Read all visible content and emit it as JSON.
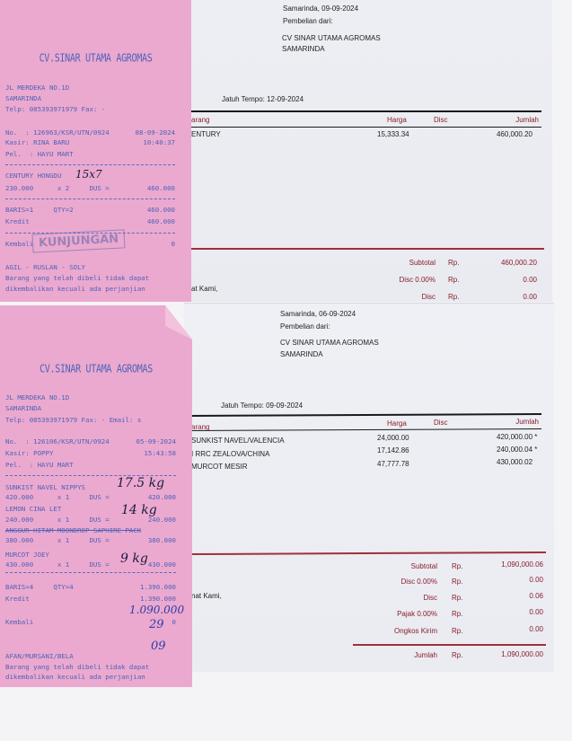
{
  "invoice_top": {
    "date": "Samarinda, 09-09-2024",
    "from_label": "Pembelian dari:",
    "supplier_name": "CV SINAR UTAMA AGROMAS",
    "supplier_city": "SAMARINDA",
    "due_date": "Jatuh Tempo: 12-09-2024",
    "columns": {
      "item": "arang",
      "price": "Harga",
      "disc": "Disc",
      "amount": "Jumlah"
    },
    "rows": [
      {
        "item": "ENTURY",
        "price": "15,333.34",
        "amount": "460,000.20"
      }
    ],
    "summary": [
      {
        "label": "Subtotal",
        "cur": "Rp.",
        "value": "460,000.20"
      },
      {
        "label": "Disc  0.00%",
        "cur": "Rp.",
        "value": "0.00"
      },
      {
        "label": "Disc",
        "cur": "Rp.",
        "value": "0.00"
      }
    ],
    "regards": "at Kami,"
  },
  "invoice_bottom": {
    "date": "Samarinda, 06-09-2024",
    "from_label": "Pembelian dari:",
    "supplier_name": "CV SINAR UTAMA AGROMAS",
    "supplier_city": "SAMARINDA",
    "due_date": "Jatuh Tempo: 09-09-2024",
    "columns": {
      "item": "arang",
      "price": "Harga",
      "disc": "Disc",
      "amount": "Jumlah"
    },
    "rows": [
      {
        "item": "SUNKIST NAVEL/VALENCIA",
        "price": "24,000.00",
        "amount": "420,000.00 *"
      },
      {
        "item": "I RRC ZEALOVA/CHINA",
        "price": "17,142.86",
        "amount": "240,000.04 *"
      },
      {
        "item": "MURCOT MESIR",
        "price": "47,777.78",
        "amount": "430,000.02"
      }
    ],
    "summary": [
      {
        "label": "Subtotal",
        "cur": "Rp.",
        "value": "1,090,000.06"
      },
      {
        "label": "Disc  0.00%",
        "cur": "Rp.",
        "value": "0.00"
      },
      {
        "label": "Disc",
        "cur": "Rp.",
        "value": "0.06"
      },
      {
        "label": "Pajak  0.00%",
        "cur": "Rp.",
        "value": "0.00"
      },
      {
        "label": "Ongkos Kirim",
        "cur": "Rp.",
        "value": "0.00"
      }
    ],
    "total": {
      "label": "Jumlah",
      "cur": "Rp.",
      "value": "1,090,000.00"
    },
    "regards": "nat Kami,"
  },
  "receipt_top": {
    "title": "CV.SINAR UTAMA AGROMAS",
    "lines": [
      [
        "JL MERDEKA NO.1D",
        ""
      ],
      [
        "SAMARINDA",
        ""
      ],
      [
        "Telp: 085393971979 Fax: -",
        ""
      ],
      [
        "No.  : 126963/KSR/UTN/0924",
        "08-09-2024"
      ],
      [
        "Kasir: RINA BARU",
        "10:40:37"
      ],
      [
        "Pel.  : HAYU MART",
        ""
      ],
      [
        "CENTURY HONGDU",
        ""
      ],
      [
        "230.000      x 2     DUS =",
        "460.000"
      ],
      [
        "BARIS=1     QTY=2",
        "460.000"
      ],
      [
        "Kredit",
        "460.000"
      ],
      [
        "Kembali",
        "0"
      ],
      [
        "AGIL - RUSLAN - SOLY",
        ""
      ],
      [
        "Barang yang telah dibeli tidak dapat",
        ""
      ],
      [
        "dikembalikan kecuali ada perjanjian",
        ""
      ]
    ],
    "handwritten": [
      "15x7"
    ],
    "stamp": "KUNJUNGAN"
  },
  "receipt_bottom": {
    "title": "CV.SINAR UTAMA AGROMAS",
    "lines": [
      [
        "JL MERDEKA NO.1D",
        ""
      ],
      [
        "SAMARINDA",
        ""
      ],
      [
        "Telp: 085393971979 Fax: - Email: s",
        ""
      ],
      [
        "No.  : 126106/KSR/UTN/0924",
        "05-09-2024"
      ],
      [
        "Kasir: POPPY",
        "15:43:58"
      ],
      [
        "Pel.  : HAYU MART",
        ""
      ],
      [
        "SUNKIST NAVEL NIPPYS",
        ""
      ],
      [
        "420.000      x 1     DUS =",
        "420.000"
      ],
      [
        "LEMON CINA LET",
        ""
      ],
      [
        "240.000      x 1     DUS =",
        "240.000"
      ],
      [
        "ANGGUR HITAM MOONDROP SAPHIRE PACK",
        ""
      ],
      [
        "380.000      x 1     DUS =",
        "380.000"
      ],
      [
        "MURCOT JOEY",
        ""
      ],
      [
        "430.000      x 1     DUS =",
        "430.000"
      ],
      [
        "BARIS=4     QTY=4",
        "1.390.000"
      ],
      [
        "Kredit",
        "1.390.000"
      ],
      [
        "Kembali",
        "0"
      ],
      [
        "AFAN/MURSANI/BELA",
        ""
      ],
      [
        "Barang yang telah dibeli tidak dapat",
        ""
      ],
      [
        "dikembalikan kecuali ada perjanjian",
        ""
      ]
    ],
    "handwritten": [
      "17.5 kg",
      "14 kg",
      "9 kg",
      "1.090.000",
      "29",
      "09"
    ]
  },
  "colors": {
    "receipt_paper": "#eba9cf",
    "receipt_ink": "#4f62b8",
    "invoice_accent": "#8a1d2a"
  }
}
